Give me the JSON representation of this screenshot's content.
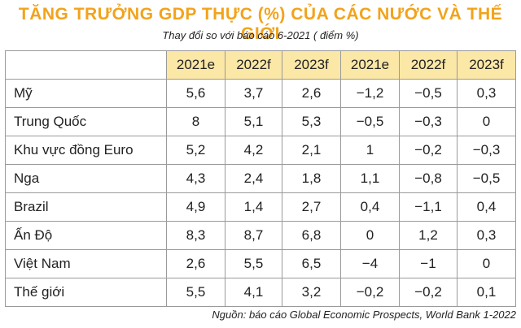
{
  "title": "TĂNG TRƯỞNG GDP THỰC (%) CỦA CÁC NƯỚC VÀ THẾ GIỚI",
  "subtitle": "Thay đổi so với báo cáo 6-2021 ( điểm %)",
  "source": "Nguồn: báo cáo Global Economic Prospects, World Bank 1-2022",
  "colors": {
    "title": "#f2a31b",
    "header_bg": "#fbe7a6",
    "border": "#9a9a9a"
  },
  "chart_data": {
    "type": "table",
    "columns": [
      "2021e",
      "2022f",
      "2023f",
      "2021e",
      "2022f",
      "2023f"
    ],
    "rows": [
      {
        "label": "Mỹ",
        "values": [
          "5,6",
          "3,7",
          "2,6",
          "−1,2",
          "−0,5",
          "0,3"
        ]
      },
      {
        "label": "Trung Quốc",
        "values": [
          "8",
          "5,1",
          "5,3",
          "−0,5",
          "−0,3",
          "0"
        ]
      },
      {
        "label": "Khu vực đồng Euro",
        "values": [
          "5,2",
          "4,2",
          "2,1",
          "1",
          "−0,2",
          "−0,3"
        ]
      },
      {
        "label": "Nga",
        "values": [
          "4,3",
          "2,4",
          "1,8",
          "1,1",
          "−0,8",
          "−0,5"
        ]
      },
      {
        "label": "Brazil",
        "values": [
          "4,9",
          "1,4",
          "2,7",
          "0,4",
          "−1,1",
          "0,4"
        ]
      },
      {
        "label": "Ấn Độ",
        "values": [
          "8,3",
          "8,7",
          "6,8",
          "0",
          "1,2",
          "0,3"
        ]
      },
      {
        "label": "Việt Nam",
        "values": [
          "2,6",
          "5,5",
          "6,5",
          "−4",
          "−1",
          "0"
        ]
      },
      {
        "label": "Thế giới",
        "values": [
          "5,5",
          "4,1",
          "3,2",
          "−0,2",
          "−0,2",
          "0,1"
        ]
      }
    ]
  }
}
